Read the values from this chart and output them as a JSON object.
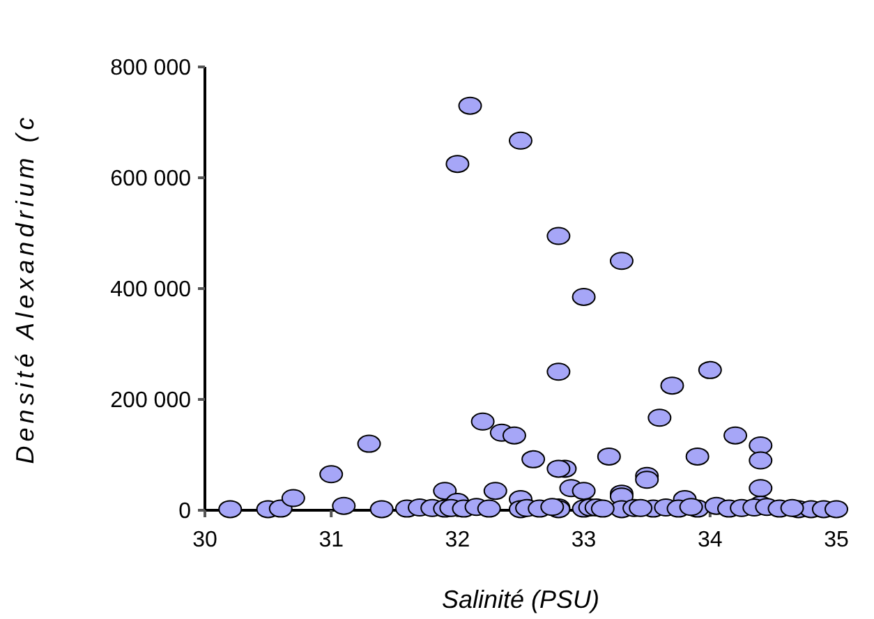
{
  "chart_data": {
    "type": "scatter",
    "xlabel": "Salinité (PSU)",
    "ylabel": "Densité Alexandrium (c",
    "xlim": [
      30,
      35
    ],
    "xticks": [
      30,
      31,
      32,
      33,
      34,
      35
    ],
    "ylim": [
      0,
      800000
    ],
    "yticks": [
      0,
      {
        "value": 200000,
        "label": "200 000"
      },
      {
        "value": 400000,
        "label": "400 000"
      },
      {
        "value": 600000,
        "label": "600 000"
      },
      {
        "value": 800000,
        "label": "800 000"
      }
    ],
    "grid": false,
    "marker": "circle",
    "series": [
      {
        "color": "#a6a6f7",
        "x": [
          30.2,
          30.5,
          30.6,
          30.7,
          31.0,
          31.1,
          31.3,
          31.4,
          31.6,
          31.7,
          31.8,
          31.9,
          31.9,
          32.0,
          32.2,
          32.3,
          32.35,
          32.45,
          32.5,
          32.5,
          32.6,
          32.8,
          32.8,
          32.85,
          32.9,
          33.0,
          33.0,
          33.05,
          33.2,
          33.3,
          33.3,
          33.3,
          33.4,
          33.5,
          33.5,
          33.55,
          33.6,
          33.7,
          33.8,
          33.9,
          33.9,
          34.0,
          34.2,
          34.4,
          34.4,
          34.4,
          34.4,
          34.7,
          34.8,
          34.9,
          35.0,
          31.95,
          32.05,
          32.15,
          32.25,
          32.55,
          32.65,
          32.75,
          33.1,
          33.15,
          33.45,
          33.65,
          33.75,
          33.85,
          34.05,
          34.15,
          34.25,
          34.35,
          34.45,
          34.55,
          34.65,
          32.0,
          32.1,
          32.5,
          32.8,
          33.3,
          32.8,
          33.0,
          32.8
        ],
        "values": [
          2000,
          2000,
          3000,
          22000,
          65000,
          8000,
          120000,
          2000,
          3000,
          5000,
          4000,
          35000,
          3000,
          15000,
          160000,
          35000,
          140000,
          135000,
          20000,
          2000,
          92000,
          5000,
          2000,
          75000,
          40000,
          35000,
          3000,
          5000,
          97000,
          30000,
          25000,
          2000,
          4000,
          62000,
          55000,
          3000,
          167000,
          225000,
          20000,
          97000,
          3000,
          253000,
          135000,
          117000,
          90000,
          40000,
          10000,
          2000,
          2000,
          2000,
          2000,
          4000,
          3000,
          6000,
          3000,
          4000,
          3000,
          6000,
          5000,
          3000,
          4000,
          5000,
          3000,
          6000,
          8000,
          3000,
          4000,
          5000,
          6000,
          3000,
          4000,
          625000,
          730000,
          667000,
          495000,
          450000,
          250000,
          385000,
          75000
        ]
      }
    ]
  }
}
